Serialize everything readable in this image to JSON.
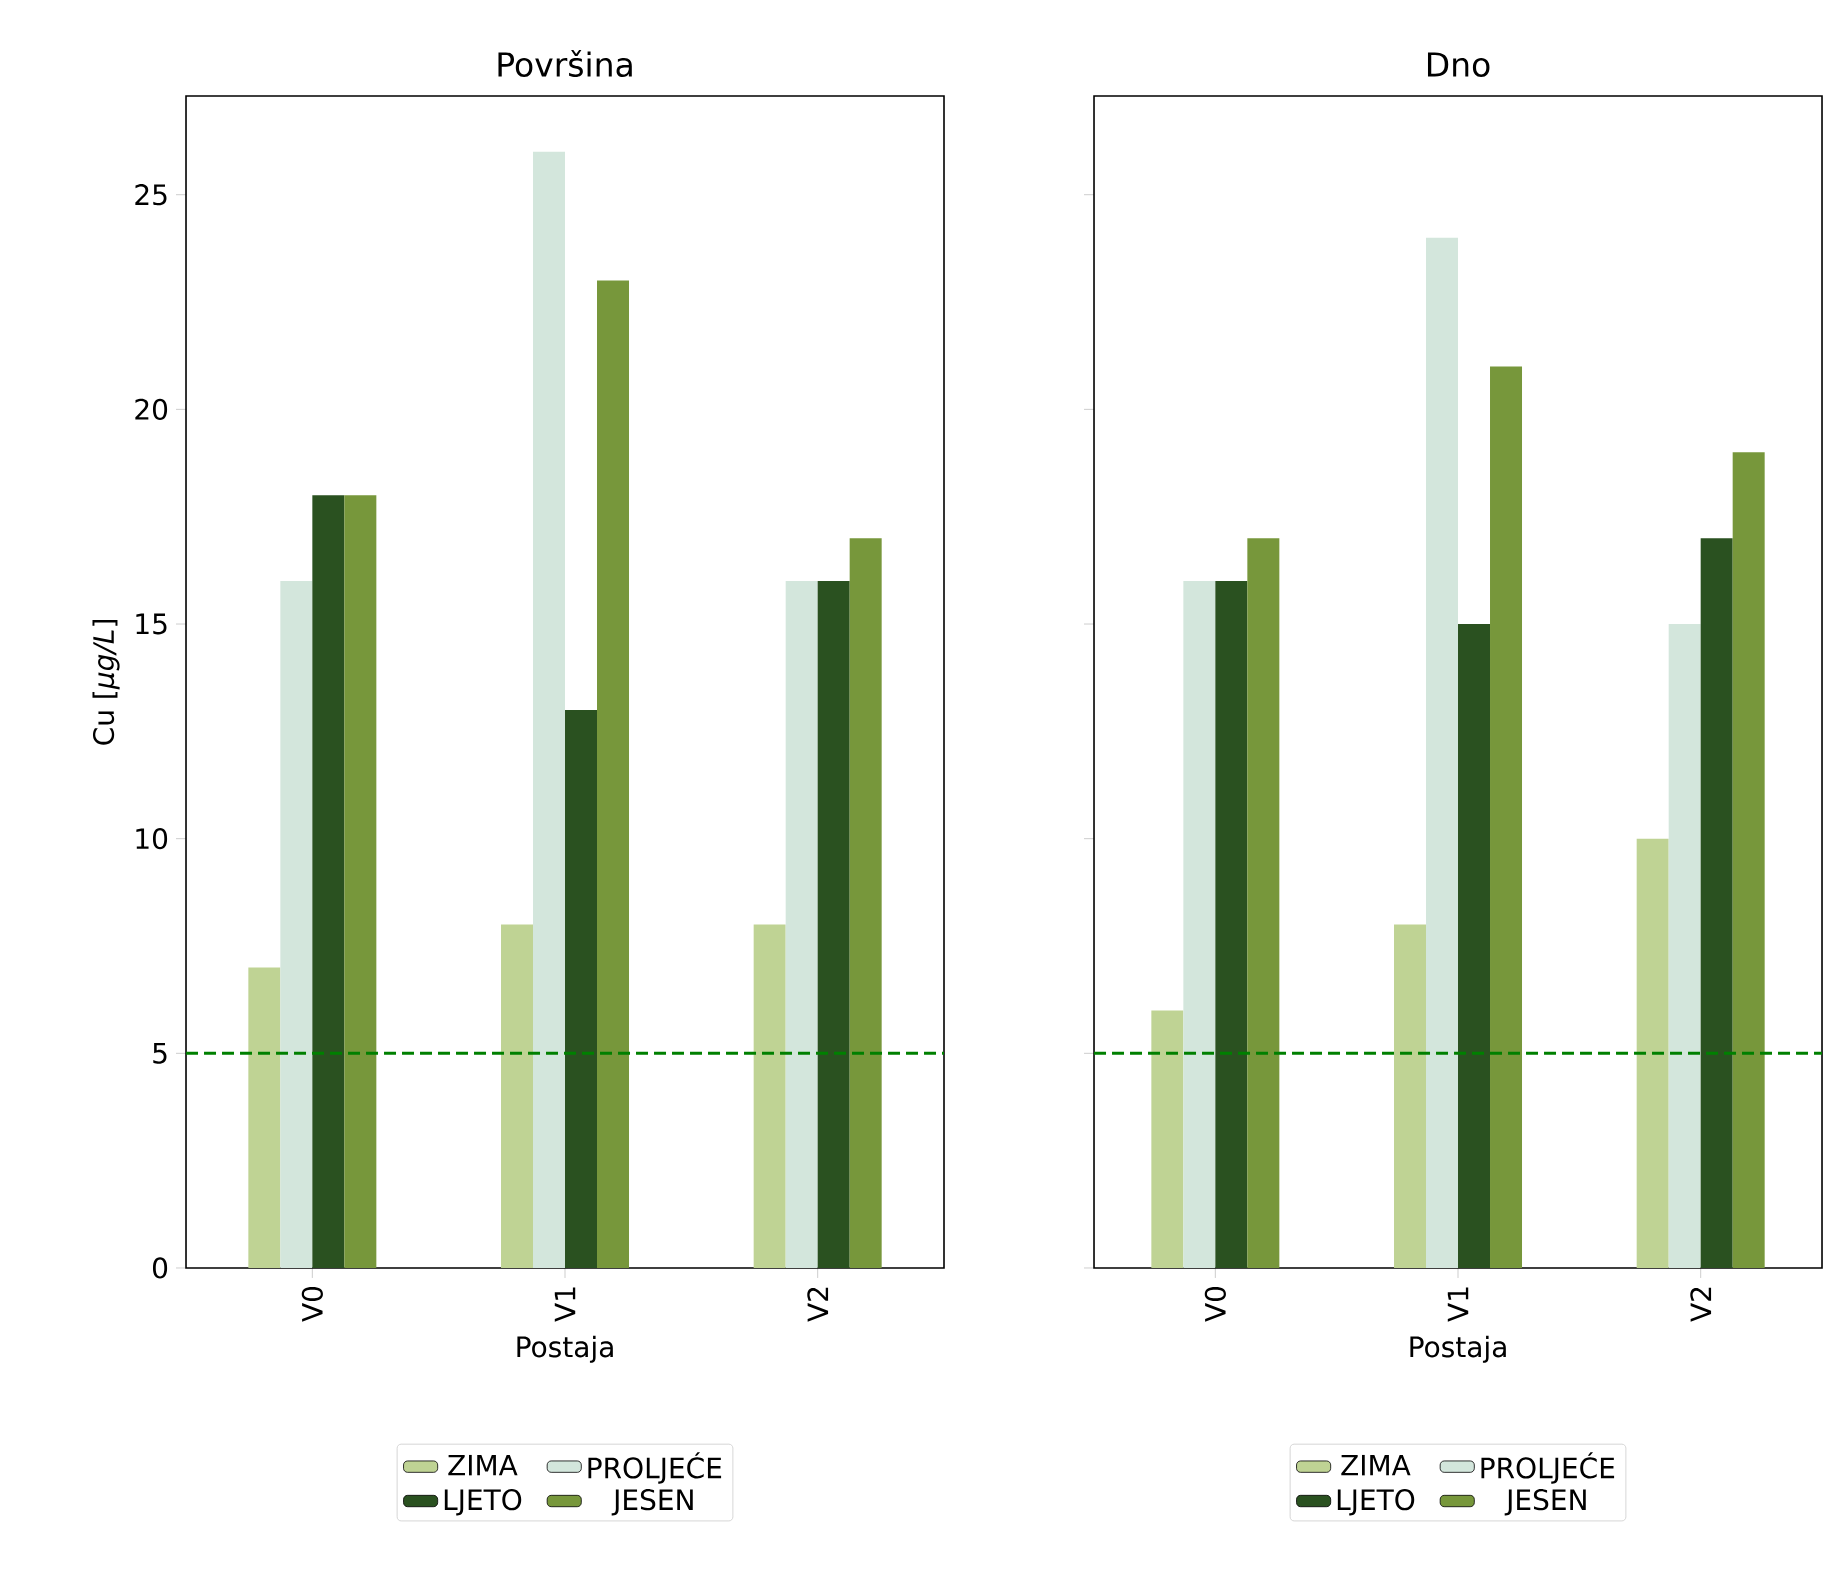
{
  "chart_data": [
    {
      "type": "bar",
      "title": "Površina",
      "xlabel": "Postaja",
      "ylabel": "Cu [*μg/L*]",
      "categories": [
        "V0",
        "V1",
        "V2"
      ],
      "series": [
        {
          "name": "ZIMA",
          "color": "#bfd394",
          "values": [
            7,
            8,
            8
          ]
        },
        {
          "name": "PROLJEĆE",
          "color": "#d3e6dc",
          "values": [
            16,
            26,
            16
          ]
        },
        {
          "name": "LJETO",
          "color": "#2a5120",
          "values": [
            18,
            13,
            16
          ]
        },
        {
          "name": "JESEN",
          "color": "#77973b",
          "values": [
            18,
            23,
            17
          ]
        }
      ],
      "ylim": [
        0,
        27.3
      ],
      "yticks": [
        0,
        5,
        10,
        15,
        20,
        25
      ],
      "legend": "bottom",
      "ref_lines": [
        {
          "axis": "y",
          "value": 5,
          "color": "#008000",
          "line_style": "dashed"
        }
      ]
    },
    {
      "type": "bar",
      "title": "Dno",
      "xlabel": "Postaja",
      "categories": [
        "V0",
        "V1",
        "V2"
      ],
      "series": [
        {
          "name": "ZIMA",
          "color": "#bfd394",
          "values": [
            6,
            8,
            10
          ]
        },
        {
          "name": "PROLJEĆE",
          "color": "#d3e6dc",
          "values": [
            16,
            24,
            15
          ]
        },
        {
          "name": "LJETO",
          "color": "#2a5120",
          "values": [
            16,
            15,
            17
          ]
        },
        {
          "name": "JESEN",
          "color": "#77973b",
          "values": [
            17,
            21,
            19
          ]
        }
      ],
      "ylim": [
        0,
        27.3
      ],
      "yticks": [
        0,
        5,
        10,
        15,
        20,
        25
      ],
      "tick_labels": "x",
      "legend": "bottom",
      "ref_lines": [
        {
          "axis": "y",
          "value": 5,
          "color": "#008000",
          "line_style": "dashed"
        }
      ]
    }
  ]
}
